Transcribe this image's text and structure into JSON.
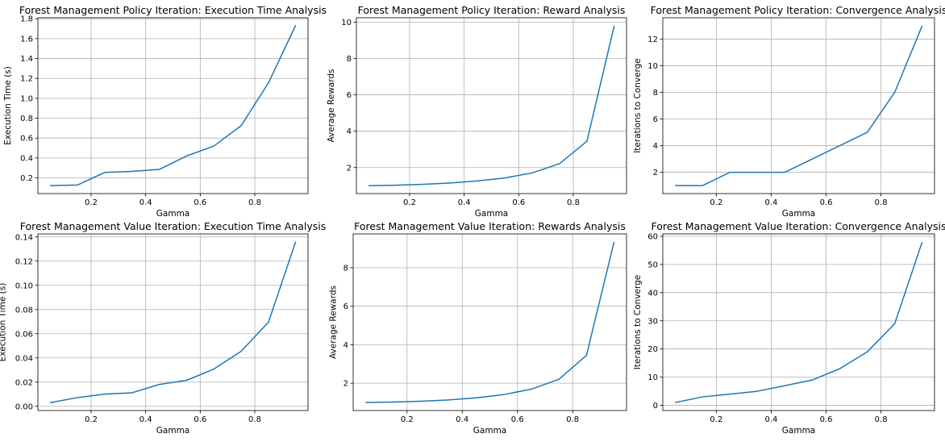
{
  "chart_data": [
    {
      "type": "line",
      "title": "Forest Management Policy Iteration: Execution Time Analysis",
      "xlabel": "Gamma",
      "ylabel": "Execution Time (s)",
      "xlim": [
        0.005,
        0.995
      ],
      "ylim": [
        0.042,
        1.81
      ],
      "xticks": [
        0.2,
        0.4,
        0.6,
        0.8
      ],
      "yticks": [
        0.2,
        0.4,
        0.6,
        0.8,
        1.0,
        1.2,
        1.4,
        1.6,
        1.8
      ],
      "yprecision": 1,
      "grid": true,
      "series": [
        {
          "color": "#1f77b4",
          "x": [
            0.05,
            0.15,
            0.25,
            0.35,
            0.45,
            0.55,
            0.65,
            0.75,
            0.85,
            0.95
          ],
          "values": [
            0.122,
            0.128,
            0.255,
            0.265,
            0.285,
            0.42,
            0.52,
            0.725,
            1.155,
            1.735
          ]
        }
      ]
    },
    {
      "type": "line",
      "title": "Forest Management Policy Iteration: Reward Analysis",
      "xlabel": "Gamma",
      "ylabel": "Average Rewards",
      "xlim": [
        0.005,
        0.995
      ],
      "ylim": [
        0.57,
        10.24
      ],
      "xticks": [
        0.2,
        0.4,
        0.6,
        0.8
      ],
      "yticks": [
        2,
        4,
        6,
        8,
        10
      ],
      "yprecision": 0,
      "grid": true,
      "series": [
        {
          "color": "#1f77b4",
          "x": [
            0.05,
            0.15,
            0.25,
            0.35,
            0.45,
            0.55,
            0.65,
            0.75,
            0.85,
            0.95
          ],
          "values": [
            1.0,
            1.03,
            1.08,
            1.15,
            1.27,
            1.43,
            1.71,
            2.22,
            3.45,
            9.8
          ]
        }
      ]
    },
    {
      "type": "line",
      "title": "Forest Management Policy Iteration: Convergence Analysis",
      "xlabel": "Gamma",
      "ylabel": "Iterations to Converge",
      "xlim": [
        0.005,
        0.995
      ],
      "ylim": [
        0.4,
        13.6
      ],
      "xticks": [
        0.2,
        0.4,
        0.6,
        0.8
      ],
      "yticks": [
        2,
        4,
        6,
        8,
        10,
        12
      ],
      "yprecision": 0,
      "grid": true,
      "series": [
        {
          "color": "#1f77b4",
          "x": [
            0.05,
            0.15,
            0.25,
            0.35,
            0.45,
            0.55,
            0.65,
            0.75,
            0.85,
            0.95
          ],
          "values": [
            1,
            1,
            2,
            2,
            2,
            3,
            4,
            5,
            8,
            13
          ]
        }
      ]
    },
    {
      "type": "line",
      "title": "Forest Management Value Iteration: Execution Time Analysis",
      "xlabel": "Gamma",
      "ylabel": "Execution Time (s)",
      "xlim": [
        0.005,
        0.995
      ],
      "ylim": [
        -0.0035,
        0.1425
      ],
      "xticks": [
        0.2,
        0.4,
        0.6,
        0.8
      ],
      "yticks": [
        0.0,
        0.02,
        0.04,
        0.06,
        0.08,
        0.1,
        0.12,
        0.14
      ],
      "yprecision": 2,
      "grid": true,
      "series": [
        {
          "color": "#1f77b4",
          "x": [
            0.05,
            0.15,
            0.25,
            0.35,
            0.45,
            0.55,
            0.65,
            0.75,
            0.85,
            0.95
          ],
          "values": [
            0.003,
            0.0072,
            0.0101,
            0.0112,
            0.0181,
            0.0215,
            0.0308,
            0.0455,
            0.0695,
            0.1362
          ]
        }
      ]
    },
    {
      "type": "line",
      "title": "Forest Management Value Iteration: Rewards Analysis",
      "xlabel": "Gamma",
      "ylabel": "Average Rewards",
      "xlim": [
        0.005,
        0.995
      ],
      "ylim": [
        0.58,
        9.76
      ],
      "xticks": [
        0.2,
        0.4,
        0.6,
        0.8
      ],
      "yticks": [
        2,
        4,
        6,
        8
      ],
      "yprecision": 0,
      "grid": true,
      "series": [
        {
          "color": "#1f77b4",
          "x": [
            0.05,
            0.15,
            0.25,
            0.35,
            0.45,
            0.55,
            0.65,
            0.75,
            0.85,
            0.95
          ],
          "values": [
            1.0,
            1.02,
            1.06,
            1.13,
            1.24,
            1.41,
            1.69,
            2.2,
            3.45,
            9.35
          ]
        }
      ]
    },
    {
      "type": "line",
      "title": "Forest Management Value Iteration: Convergence Analysis",
      "xlabel": "Gamma",
      "ylabel": "Iterations to Converge",
      "xlim": [
        0.005,
        0.995
      ],
      "ylim": [
        -1.85,
        60.85
      ],
      "xticks": [
        0.2,
        0.4,
        0.6,
        0.8
      ],
      "yticks": [
        0,
        10,
        20,
        30,
        40,
        50,
        60
      ],
      "yprecision": 0,
      "grid": true,
      "series": [
        {
          "color": "#1f77b4",
          "x": [
            0.05,
            0.15,
            0.25,
            0.35,
            0.45,
            0.55,
            0.65,
            0.75,
            0.85,
            0.95
          ],
          "values": [
            1,
            3,
            4,
            5,
            7,
            9,
            13,
            19,
            29,
            58
          ]
        }
      ]
    }
  ]
}
